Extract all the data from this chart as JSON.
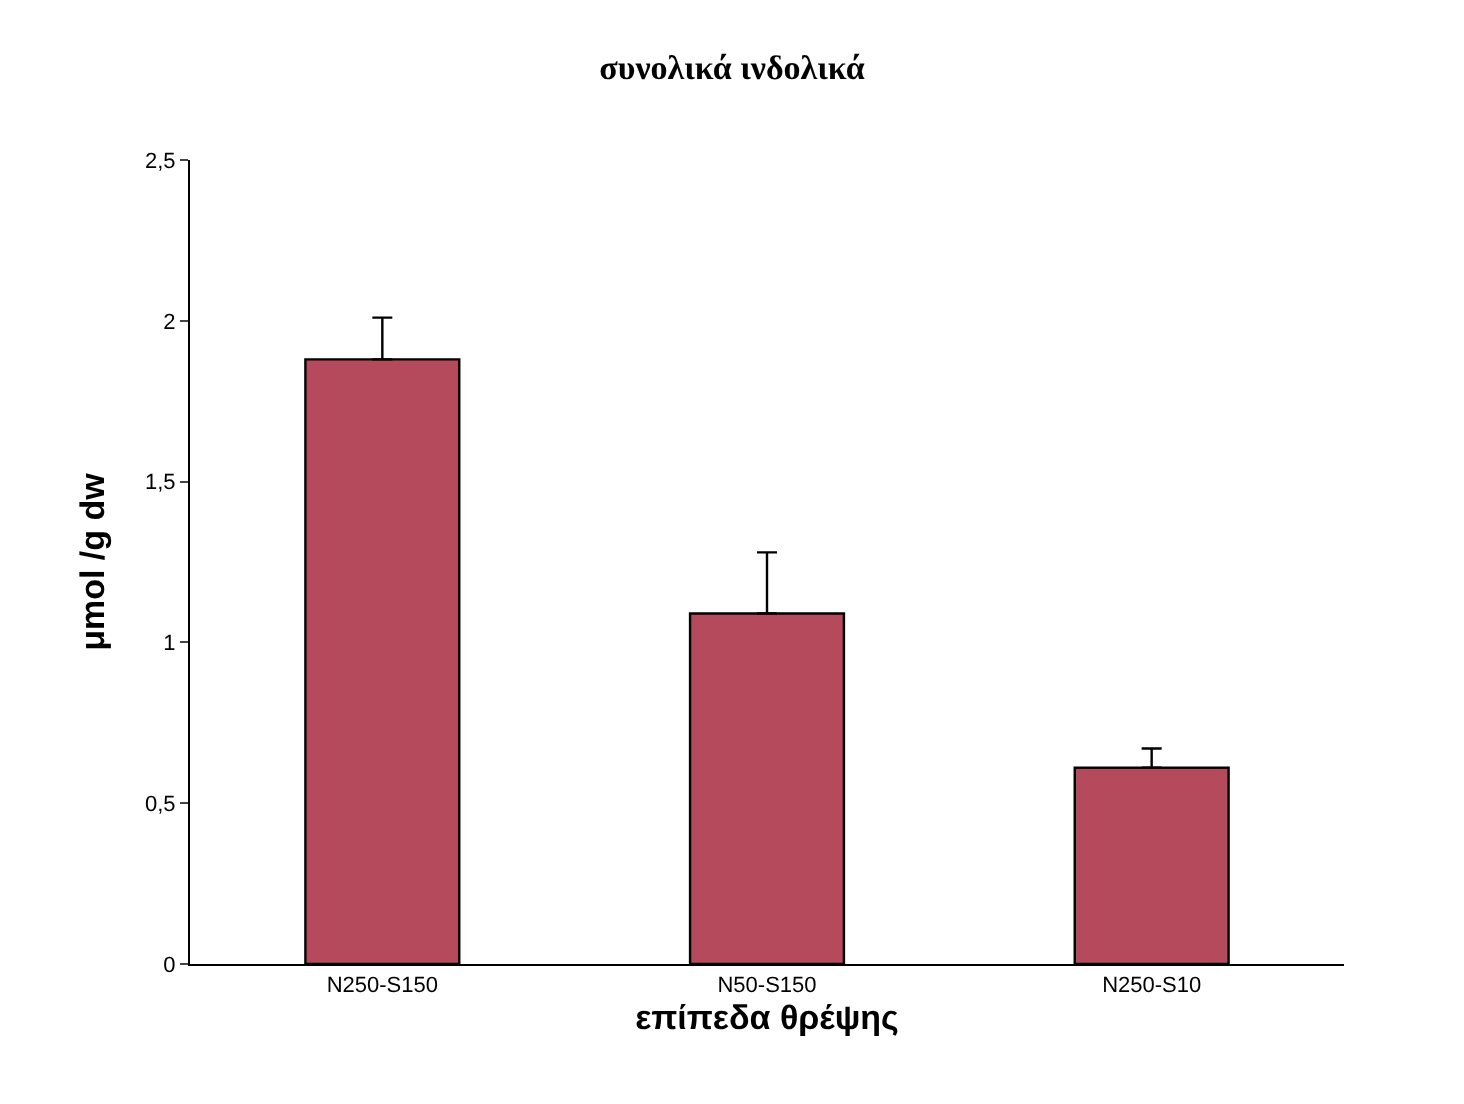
{
  "chart_data": {
    "type": "bar",
    "title": "συνολικά ινδολικά",
    "xlabel": "επίπεδα θρέψης",
    "ylabel": "μmol /g dw",
    "categories": [
      "N250-S150",
      "N50-S150",
      "N250-S10"
    ],
    "values": [
      1.88,
      1.09,
      0.61
    ],
    "errors": [
      [
        1.88,
        2.01
      ],
      [
        1.09,
        1.28
      ],
      [
        0.61,
        0.67
      ]
    ],
    "color": "#b54a5c",
    "ylim": [
      0,
      2.5
    ],
    "yticks": [
      0,
      {
        "value": 0.5,
        "label": "0,5"
      },
      1,
      {
        "value": 1.5,
        "label": "1,5"
      },
      2,
      {
        "value": 2.5,
        "label": "2,5"
      }
    ],
    "legend": false
  }
}
